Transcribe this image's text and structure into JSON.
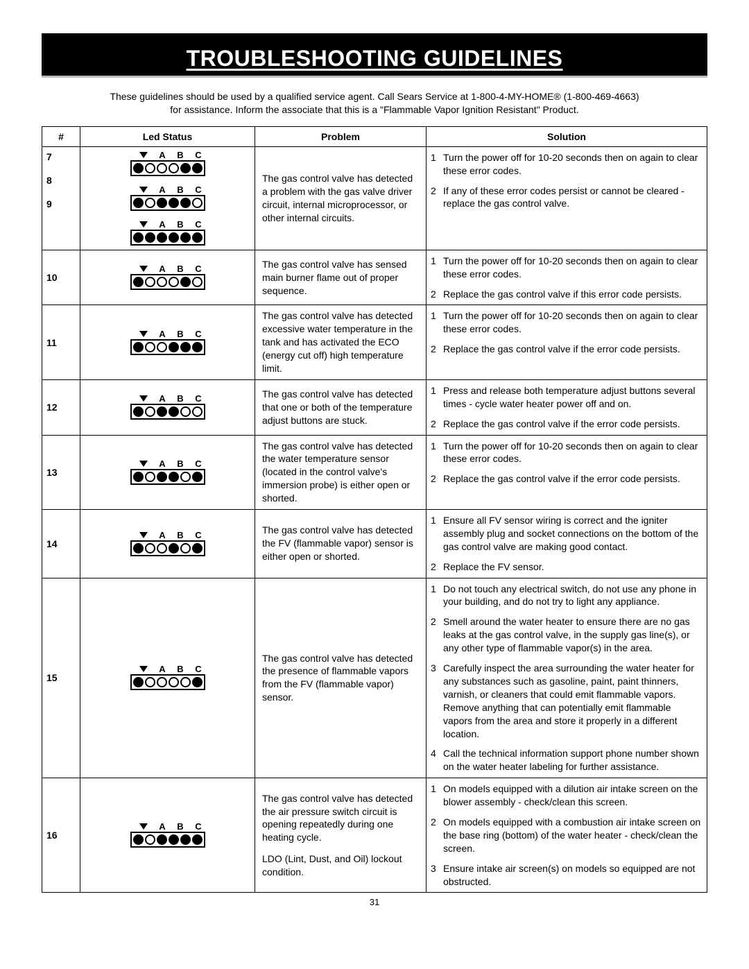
{
  "header": {
    "title": "TROUBLESHOOTING GUIDELINES"
  },
  "intro": {
    "line1": "These guidelines should be used by a qualified service agent. Call Sears Service at 1-800-4-MY-HOME® (1-800-469-4663)",
    "line2": "for assistance. Inform the associate that this is a \"Flammable Vapor Ignition Resistant\" Product."
  },
  "columns": {
    "num": "#",
    "led": "Led Status",
    "problem": "Problem",
    "solution": "Solution"
  },
  "led_label": "A B C",
  "rows": [
    {
      "nums": [
        "7",
        "8",
        "9"
      ],
      "leds": [
        [
          1,
          0,
          0,
          0,
          1,
          1
        ],
        [
          1,
          0,
          1,
          1,
          1,
          0
        ],
        [
          1,
          1,
          1,
          1,
          1,
          1
        ]
      ],
      "problem": "The gas control valve has detected a problem with the gas valve driver circuit, internal microprocessor, or other internal circuits.",
      "solution": [
        "Turn the power off for 10-20 seconds then on again to clear these error codes.",
        "If any of these error codes persist or cannot be cleared - replace the gas control valve."
      ]
    },
    {
      "nums": [
        "10"
      ],
      "leds": [
        [
          1,
          0,
          0,
          0,
          1,
          0
        ]
      ],
      "problem": "The gas control valve has sensed main burner flame out of proper sequence.",
      "solution": [
        "Turn the power off for 10-20 seconds then on again to clear these error codes.",
        "Replace the gas control valve if this error code persists."
      ]
    },
    {
      "nums": [
        "11"
      ],
      "leds": [
        [
          1,
          0,
          0,
          1,
          1,
          1
        ]
      ],
      "problem": "The gas control valve has detected excessive water temperature in the tank and has activated the ECO (energy cut off) high temperature limit.",
      "solution": [
        "Turn the power off for 10-20 seconds then on again to clear these error codes.",
        "Replace the gas control valve if the error code persists."
      ]
    },
    {
      "nums": [
        "12"
      ],
      "leds": [
        [
          1,
          0,
          1,
          1,
          0,
          0
        ]
      ],
      "problem": "The gas control valve has detected that one or both of the temperature adjust buttons are stuck.",
      "solution": [
        "Press and release both temperature adjust buttons several times - cycle water heater power off and on.",
        "Replace the gas control valve if the error code persists."
      ]
    },
    {
      "nums": [
        "13"
      ],
      "leds": [
        [
          1,
          0,
          1,
          1,
          0,
          1
        ]
      ],
      "problem": "The gas control valve has detected the water temperature sensor (located in the control valve's immersion probe) is either open or shorted.",
      "solution": [
        "Turn the power off for 10-20 seconds then on again to clear these error codes.",
        "Replace the gas control valve if the error code persists."
      ]
    },
    {
      "nums": [
        "14"
      ],
      "leds": [
        [
          1,
          0,
          0,
          1,
          0,
          1
        ]
      ],
      "problem": "The gas control valve has detected the FV (flammable vapor) sensor is either open or shorted.",
      "solution": [
        "Ensure all FV sensor wiring is correct and the igniter assembly plug and socket connections on the bottom of the gas control valve are making good contact.",
        "Replace the FV sensor."
      ]
    },
    {
      "nums": [
        "15"
      ],
      "leds": [
        [
          1,
          0,
          0,
          0,
          0,
          1
        ]
      ],
      "problem": "The gas control valve has detected the presence of flammable vapors from the FV (flammable vapor) sensor.",
      "solution": [
        "Do not touch any electrical switch, do not use any phone in your building, and do not try to light any appliance.",
        "Smell around the water heater to ensure there are no gas leaks at the gas control valve, in the supply gas line(s), or any other type of flammable vapor(s) in the area.",
        "Carefully inspect the area surrounding the water heater for any substances such as gasoline, paint, paint thinners, varnish, or cleaners that could emit flammable vapors. Remove anything that can potentially emit flammable vapors from the area and store it properly in a different location.",
        "Call the technical information support phone number shown on the water heater labeling for further assistance."
      ]
    },
    {
      "nums": [
        "16"
      ],
      "leds": [
        [
          1,
          0,
          1,
          1,
          1,
          1
        ]
      ],
      "problem": "The gas control valve has detected the air pressure switch circuit is opening repeatedly during one heating cycle.\n\nLDO (Lint, Dust, and Oil) lockout condition.",
      "solution": [
        "On models equipped with a dilution air intake screen on the blower assembly - check/clean this screen.",
        "On models equipped with a combustion air intake screen on the base ring (bottom) of the water heater - check/clean the screen.",
        "Ensure intake air screen(s) on models so equipped are not obstructed."
      ]
    }
  ],
  "page_number": "31"
}
